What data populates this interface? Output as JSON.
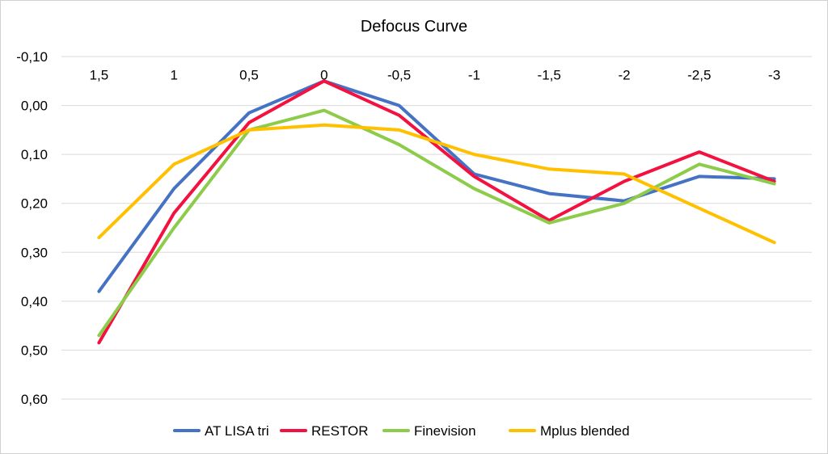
{
  "chart_data": {
    "type": "line",
    "title": "Defocus Curve",
    "xlabel": "",
    "ylabel": "",
    "categories": [
      "1,5",
      "1",
      "0,5",
      "0",
      "-0,5",
      "-1",
      "-1,5",
      "-2",
      "-2,5",
      "-3"
    ],
    "y_tick_labels": [
      "-0,10",
      "0,00",
      "0,10",
      "0,20",
      "0,30",
      "0,40",
      "0,50",
      "0,60"
    ],
    "y_ticks": [
      -0.1,
      0.0,
      0.1,
      0.2,
      0.3,
      0.4,
      0.5,
      0.6
    ],
    "ylim": [
      -0.1,
      0.6
    ],
    "y_inverted": true,
    "x_axis_position": "at y=-0.05",
    "grid": true,
    "legend_position": "bottom",
    "series": [
      {
        "name": "AT LISA tri",
        "color": "#4472C4",
        "values": [
          0.38,
          0.17,
          0.015,
          -0.05,
          0.0,
          0.14,
          0.18,
          0.195,
          0.145,
          0.15
        ]
      },
      {
        "name": "RESTOR",
        "color": "#F2113F",
        "values": [
          0.485,
          0.22,
          0.035,
          -0.05,
          0.02,
          0.145,
          0.235,
          0.155,
          0.095,
          0.155
        ]
      },
      {
        "name": "Finevision",
        "color": "#8DCB4B",
        "values": [
          0.47,
          0.25,
          0.05,
          0.01,
          0.08,
          0.17,
          0.24,
          0.2,
          0.12,
          0.16
        ]
      },
      {
        "name": "Mplus blended",
        "color": "#FFC000",
        "values": [
          0.27,
          0.12,
          0.05,
          0.04,
          0.05,
          0.1,
          0.13,
          0.14,
          0.21,
          0.28
        ]
      }
    ]
  }
}
